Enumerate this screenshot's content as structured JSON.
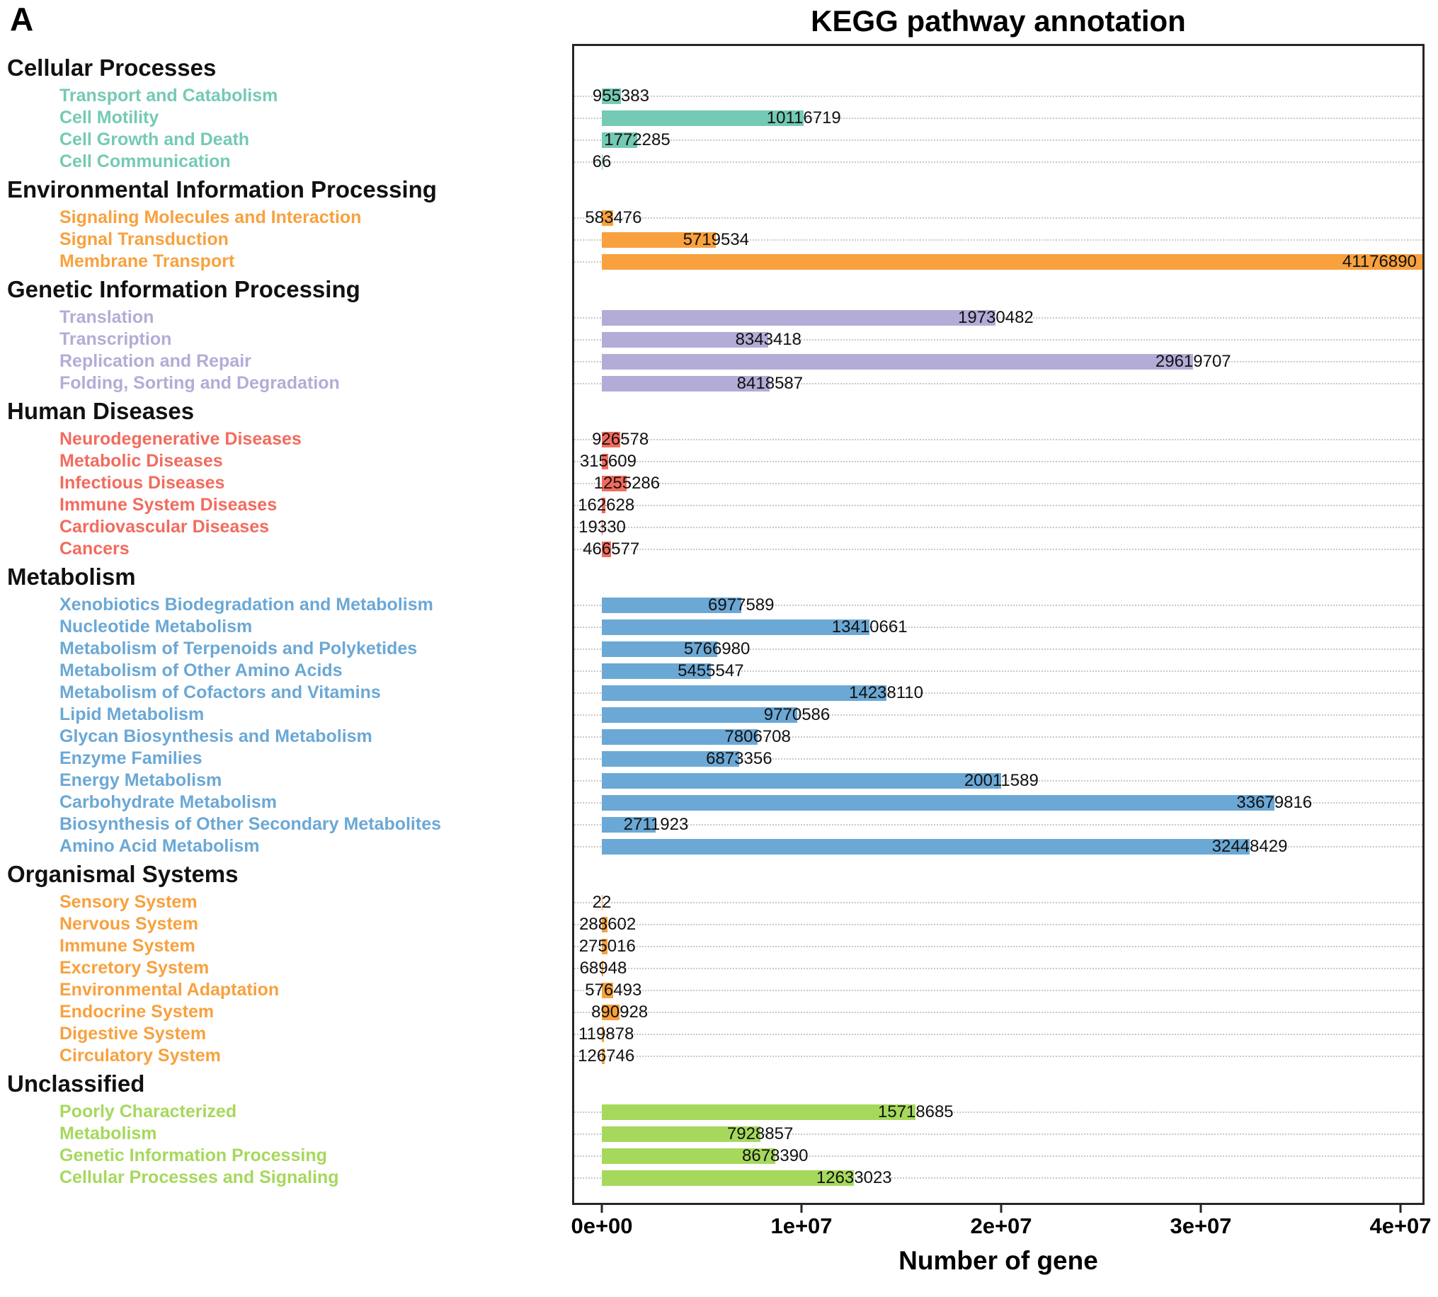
{
  "panel_label": "A",
  "chart": {
    "title": "KEGG pathway annotation",
    "xlabel": "Number of gene"
  },
  "chart_data": {
    "type": "bar",
    "orientation": "horizontal",
    "title": "KEGG pathway annotation",
    "xlabel": "Number of gene",
    "xlim": [
      0,
      41200000
    ],
    "grid": "dotted-horizontal",
    "x_ticks": [
      {
        "label": "0e+00",
        "value": 0
      },
      {
        "label": "1e+07",
        "value": 10000000
      },
      {
        "label": "2e+07",
        "value": 20000000
      },
      {
        "label": "3e+07",
        "value": 30000000
      },
      {
        "label": "4e+07",
        "value": 40000000
      }
    ],
    "groups": [
      {
        "name": "Cellular Processes",
        "color": "#74CAB4",
        "items": [
          {
            "label": "Transport and Catabolism",
            "value": 955383
          },
          {
            "label": "Cell Motility",
            "value": 10116719
          },
          {
            "label": "Cell Growth and Death",
            "value": 1772285
          },
          {
            "label": "Cell Communication",
            "value": 66
          }
        ]
      },
      {
        "name": "Environmental Information Processing",
        "color": "#F8A13E",
        "items": [
          {
            "label": "Signaling Molecules and Interaction",
            "value": 583476
          },
          {
            "label": "Signal Transduction",
            "value": 5719534
          },
          {
            "label": "Membrane Transport",
            "value": 41176890
          }
        ]
      },
      {
        "name": "Genetic Information Processing",
        "color": "#B3ACD6",
        "items": [
          {
            "label": "Translation",
            "value": 19730482
          },
          {
            "label": "Transcription",
            "value": 8343418
          },
          {
            "label": "Replication and Repair",
            "value": 29619707
          },
          {
            "label": "Folding, Sorting and Degradation",
            "value": 8418587
          }
        ]
      },
      {
        "name": "Human Diseases",
        "color": "#F26B5E",
        "items": [
          {
            "label": "Neurodegenerative Diseases",
            "value": 926578
          },
          {
            "label": "Metabolic Diseases",
            "value": 315609
          },
          {
            "label": "Infectious Diseases",
            "value": 1255286
          },
          {
            "label": "Immune System Diseases",
            "value": 162628
          },
          {
            "label": "Cardiovascular Diseases",
            "value": 19330
          },
          {
            "label": "Cancers",
            "value": 466577
          }
        ]
      },
      {
        "name": "Metabolism",
        "color": "#6BA8D5",
        "items": [
          {
            "label": "Xenobiotics Biodegradation and Metabolism",
            "value": 6977589
          },
          {
            "label": "Nucleotide Metabolism",
            "value": 13410661
          },
          {
            "label": "Metabolism of Terpenoids and Polyketides",
            "value": 5766980
          },
          {
            "label": "Metabolism of Other Amino Acids",
            "value": 5455547
          },
          {
            "label": "Metabolism of Cofactors and Vitamins",
            "value": 14238110
          },
          {
            "label": "Lipid Metabolism",
            "value": 9770586
          },
          {
            "label": "Glycan Biosynthesis and Metabolism",
            "value": 7806708
          },
          {
            "label": "Enzyme Families",
            "value": 6873356
          },
          {
            "label": "Energy Metabolism",
            "value": 20011589
          },
          {
            "label": "Carbohydrate Metabolism",
            "value": 33679816
          },
          {
            "label": "Biosynthesis of Other Secondary Metabolites",
            "value": 2711923
          },
          {
            "label": "Amino Acid Metabolism",
            "value": 32448429
          }
        ]
      },
      {
        "name": "Organismal Systems",
        "color": "#F8A13E",
        "items": [
          {
            "label": "Sensory System",
            "value": 22
          },
          {
            "label": "Nervous System",
            "value": 288602
          },
          {
            "label": "Immune System",
            "value": 275016
          },
          {
            "label": "Excretory System",
            "value": 68948
          },
          {
            "label": "Environmental Adaptation",
            "value": 576493
          },
          {
            "label": "Endocrine System",
            "value": 890928
          },
          {
            "label": "Digestive System",
            "value": 119878
          },
          {
            "label": "Circulatory System",
            "value": 126746
          }
        ]
      },
      {
        "name": "Unclassified",
        "color": "#A6D85C",
        "items": [
          {
            "label": "Poorly Characterized",
            "value": 15718685
          },
          {
            "label": "Metabolism",
            "value": 7928857
          },
          {
            "label": "Genetic Information Processing",
            "value": 8678390
          },
          {
            "label": "Cellular Processes and Signaling",
            "value": 12633023
          }
        ]
      }
    ]
  }
}
